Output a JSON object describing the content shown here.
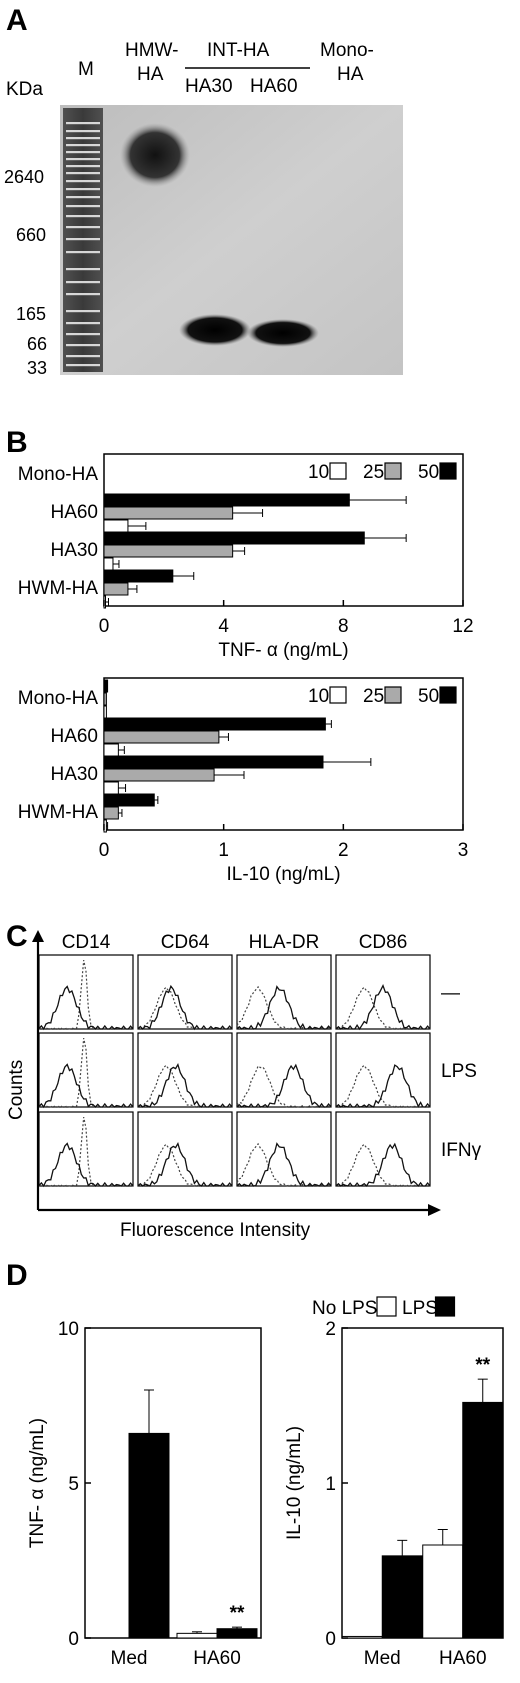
{
  "panel_letters": [
    "A",
    "B",
    "C",
    "D"
  ],
  "chart_data": [
    {
      "type": "gel",
      "panel": "A",
      "unit_label": "KDa",
      "lane_labels": [
        "M",
        "HMW-\nHA",
        "HA30",
        "HA60",
        "Mono-\nHA"
      ],
      "group_label": "INT-HA",
      "marker_labels": [
        "2640",
        "660",
        "165",
        "66",
        "33"
      ]
    },
    {
      "type": "bar",
      "orientation": "horizontal",
      "panel": "B",
      "categories": [
        "Mono-HA",
        "HA60",
        "HA30",
        "HWM-HA"
      ],
      "series": [
        {
          "name": "10",
          "color": "#ffffff",
          "values": [
            0,
            0.8,
            0.3,
            0.05
          ],
          "errors": [
            0,
            0.6,
            0.2,
            0.1
          ]
        },
        {
          "name": "25",
          "color": "#aaaaaa",
          "values": [
            0,
            4.3,
            4.3,
            0.8
          ],
          "errors": [
            0,
            1.0,
            0.4,
            0.3
          ]
        },
        {
          "name": "50",
          "color": "#000000",
          "values": [
            0,
            8.2,
            8.7,
            2.3
          ],
          "errors": [
            0,
            1.9,
            1.4,
            0.7
          ]
        }
      ],
      "xlabel": "TNF- α (ng/mL)",
      "xlim": [
        0,
        12
      ],
      "xticks": [
        "0",
        "4",
        "8",
        "12"
      ],
      "legend_position": "top-right"
    },
    {
      "type": "bar",
      "orientation": "horizontal",
      "panel": "B",
      "categories": [
        "Mono-HA",
        "HA60",
        "HA30",
        "HWM-HA"
      ],
      "series": [
        {
          "name": "10",
          "color": "#ffffff",
          "values": [
            0.02,
            0.12,
            0.12,
            0.02
          ],
          "errors": [
            0,
            0.05,
            0.06,
            0.01
          ]
        },
        {
          "name": "25",
          "color": "#aaaaaa",
          "values": [
            0.02,
            0.96,
            0.92,
            0.12
          ],
          "errors": [
            0,
            0.08,
            0.25,
            0.03
          ]
        },
        {
          "name": "50",
          "color": "#000000",
          "values": [
            0.03,
            1.85,
            1.83,
            0.42
          ],
          "errors": [
            0,
            0.05,
            0.4,
            0.03
          ]
        }
      ],
      "xlabel": "IL-10 (ng/mL)",
      "xlim": [
        0,
        3
      ],
      "xticks": [
        "0",
        "1",
        "2",
        "3"
      ],
      "legend_position": "top-right"
    },
    {
      "type": "histogram-grid",
      "panel": "C",
      "columns": [
        "CD14",
        "CD64",
        "HLA-DR",
        "CD86"
      ],
      "rows": [
        "—",
        "LPS",
        "IFNγ"
      ],
      "ylabel": "Counts",
      "xlabel": "Fluorescence Intensity"
    },
    {
      "type": "bar",
      "panel": "D",
      "categories": [
        "Med",
        "HA60"
      ],
      "series": [
        {
          "name": "No LPS",
          "color": "#ffffff",
          "values": [
            0,
            0.15
          ],
          "errors": [
            0,
            0.05
          ]
        },
        {
          "name": "LPS",
          "color": "#000000",
          "values": [
            6.6,
            0.3
          ],
          "errors": [
            1.4,
            0.05
          ]
        }
      ],
      "ylabel": "TNF- α (ng/mL)",
      "ylim": [
        0,
        10
      ],
      "yticks": [
        "0",
        "5",
        "10"
      ],
      "annotations": [
        "**"
      ]
    },
    {
      "type": "bar",
      "panel": "D",
      "categories": [
        "Med",
        "HA60"
      ],
      "series": [
        {
          "name": "No LPS",
          "color": "#ffffff",
          "values": [
            0.01,
            0.6
          ],
          "errors": [
            0,
            0.1
          ]
        },
        {
          "name": "LPS",
          "color": "#000000",
          "values": [
            0.53,
            1.52
          ],
          "errors": [
            0.1,
            0.15
          ]
        }
      ],
      "ylabel": "IL-10 (ng/mL)",
      "ylim": [
        0,
        2
      ],
      "yticks": [
        "0",
        "1",
        "2"
      ],
      "annotations": [
        "**"
      ],
      "legend": [
        "No LPS",
        "LPS"
      ],
      "legend_position": "top"
    }
  ]
}
